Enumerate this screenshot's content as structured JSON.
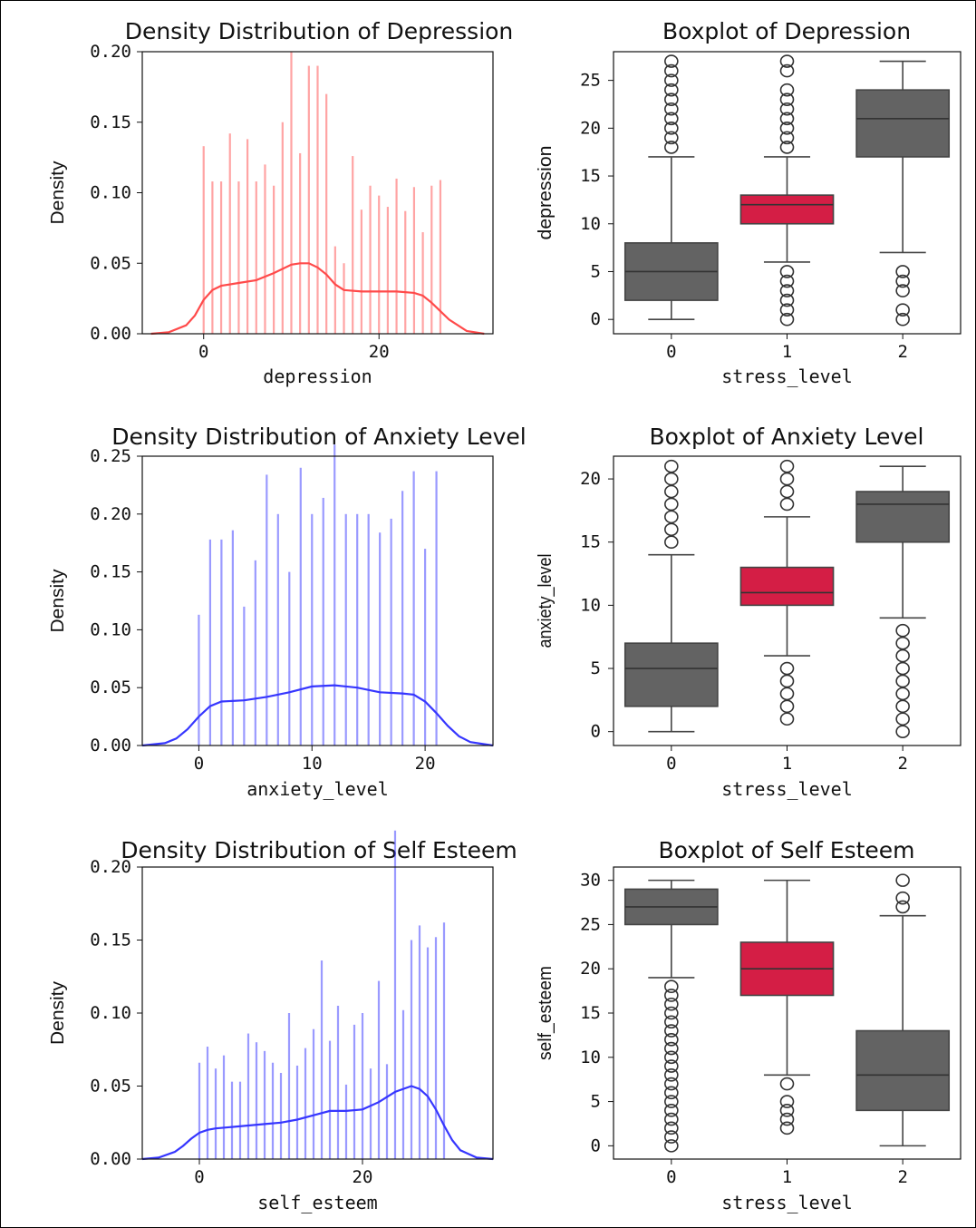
{
  "chart_data": [
    {
      "type": "bar",
      "kind": "density-histogram-with-kde",
      "title": "Density Distribution of Depression",
      "xlabel": "depression",
      "ylabel": "Density",
      "color": "#ff4a4a",
      "xlim": [
        -7,
        33
      ],
      "ylim": [
        0,
        0.2
      ],
      "xticks": [
        0,
        20
      ],
      "yticks": [
        "0.00",
        "0.05",
        "0.10",
        "0.15",
        "0.20"
      ],
      "bars": {
        "x": [
          0,
          1,
          2,
          3,
          4,
          5,
          6,
          7,
          8,
          9,
          10,
          11,
          12,
          13,
          14,
          15,
          16,
          17,
          18,
          19,
          20,
          21,
          22,
          23,
          24,
          25,
          26,
          27
        ],
        "values": [
          0.133,
          0.108,
          0.108,
          0.142,
          0.108,
          0.138,
          0.108,
          0.12,
          0.105,
          0.15,
          0.2,
          0.128,
          0.19,
          0.19,
          0.17,
          0.062,
          0.05,
          0.126,
          0.088,
          0.105,
          0.098,
          0.09,
          0.11,
          0.087,
          0.104,
          0.072,
          0.105,
          0.109
        ]
      },
      "kde": {
        "x": [
          -6,
          -4,
          -2,
          -1,
          0,
          1,
          2,
          4,
          6,
          8,
          10,
          11,
          12,
          13,
          14,
          15,
          16,
          18,
          20,
          22,
          24,
          25,
          26,
          27,
          28,
          30,
          32
        ],
        "y": [
          0,
          0.001,
          0.006,
          0.013,
          0.024,
          0.031,
          0.034,
          0.036,
          0.038,
          0.043,
          0.049,
          0.05,
          0.05,
          0.047,
          0.042,
          0.035,
          0.031,
          0.03,
          0.03,
          0.03,
          0.029,
          0.027,
          0.022,
          0.016,
          0.01,
          0.002,
          0
        ]
      }
    },
    {
      "type": "box",
      "title": "Boxplot of Depression",
      "xlabel": "stress_level",
      "ylabel": "depression",
      "categories": [
        "0",
        "1",
        "2"
      ],
      "ylim": [
        -1.5,
        28
      ],
      "yticks": [
        0,
        5,
        10,
        15,
        20,
        25
      ],
      "colors": [
        "#636363",
        "#d41e45",
        "#636363"
      ],
      "boxes": [
        {
          "q1": 2,
          "median": 5,
          "q3": 8,
          "whislo": 0,
          "whishi": 17,
          "fliers": [
            18,
            19,
            20,
            21,
            22,
            23,
            24,
            25,
            26,
            27
          ]
        },
        {
          "q1": 10,
          "median": 12,
          "q3": 13,
          "whislo": 6,
          "whishi": 17,
          "fliers": [
            0,
            1,
            2,
            3,
            4,
            5,
            18,
            19,
            20,
            21,
            22,
            23,
            24,
            26,
            27
          ]
        },
        {
          "q1": 17,
          "median": 21,
          "q3": 24,
          "whislo": 7,
          "whishi": 27,
          "fliers": [
            0,
            1,
            3,
            4,
            5
          ]
        }
      ]
    },
    {
      "type": "bar",
      "kind": "density-histogram-with-kde",
      "title": "Density Distribution of Anxiety Level",
      "xlabel": "anxiety_level",
      "ylabel": "Density",
      "color": "#3636ff",
      "xlim": [
        -5,
        26
      ],
      "ylim": [
        0,
        0.25
      ],
      "xticks": [
        0,
        10,
        20
      ],
      "yticks": [
        "0.00",
        "0.05",
        "0.10",
        "0.15",
        "0.20",
        "0.25"
      ],
      "bars": {
        "x": [
          0,
          1,
          2,
          3,
          4,
          5,
          6,
          7,
          8,
          9,
          10,
          11,
          12,
          13,
          14,
          15,
          16,
          17,
          18,
          19,
          20,
          21
        ],
        "values": [
          0.113,
          0.178,
          0.178,
          0.186,
          0.12,
          0.16,
          0.234,
          0.2,
          0.15,
          0.24,
          0.2,
          0.214,
          0.26,
          0.2,
          0.2,
          0.2,
          0.184,
          0.196,
          0.22,
          0.237,
          0.17,
          0.237
        ]
      },
      "kde": {
        "x": [
          -5,
          -3,
          -2,
          -1,
          0,
          1,
          2,
          4,
          6,
          8,
          10,
          12,
          14,
          16,
          18,
          19,
          20,
          21,
          22,
          23,
          24,
          26
        ],
        "y": [
          0,
          0.002,
          0.006,
          0.014,
          0.025,
          0.034,
          0.038,
          0.039,
          0.042,
          0.046,
          0.051,
          0.052,
          0.05,
          0.046,
          0.045,
          0.044,
          0.038,
          0.028,
          0.017,
          0.008,
          0.003,
          0
        ]
      }
    },
    {
      "type": "box",
      "title": "Boxplot of Anxiety Level",
      "xlabel": "stress_level",
      "ylabel": "anxiety_level",
      "categories": [
        "0",
        "1",
        "2"
      ],
      "ylim": [
        -1.1,
        21.8
      ],
      "yticks": [
        0,
        5,
        10,
        15,
        20
      ],
      "colors": [
        "#636363",
        "#d41e45",
        "#636363"
      ],
      "boxes": [
        {
          "q1": 2,
          "median": 5,
          "q3": 7,
          "whislo": 0,
          "whishi": 14,
          "fliers": [
            15,
            16,
            17,
            18,
            19,
            20,
            21
          ]
        },
        {
          "q1": 10,
          "median": 11,
          "q3": 13,
          "whislo": 6,
          "whishi": 17,
          "fliers": [
            1,
            2,
            3,
            4,
            5,
            18,
            19,
            20,
            21
          ]
        },
        {
          "q1": 15,
          "median": 18,
          "q3": 19,
          "whislo": 9,
          "whishi": 21,
          "fliers": [
            0,
            1,
            2,
            3,
            4,
            5,
            6,
            7,
            8
          ]
        }
      ]
    },
    {
      "type": "bar",
      "kind": "density-histogram-with-kde",
      "title": "Density Distribution of Self Esteem",
      "xlabel": "self_esteem",
      "ylabel": "Density",
      "color": "#3636ff",
      "xlim": [
        -7,
        36
      ],
      "ylim": [
        0,
        0.2
      ],
      "xticks": [
        0,
        20
      ],
      "yticks": [
        "0.00",
        "0.05",
        "0.10",
        "0.15",
        "0.20"
      ],
      "bars": {
        "x": [
          0,
          1,
          2,
          3,
          4,
          5,
          6,
          7,
          8,
          9,
          10,
          11,
          12,
          13,
          14,
          15,
          16,
          17,
          18,
          19,
          20,
          21,
          22,
          23,
          24,
          25,
          26,
          27,
          28,
          29,
          30
        ],
        "values": [
          0.066,
          0.077,
          0.062,
          0.071,
          0.053,
          0.053,
          0.086,
          0.08,
          0.074,
          0.066,
          0.059,
          0.1,
          0.064,
          0.076,
          0.089,
          0.136,
          0.081,
          0.105,
          0.051,
          0.092,
          0.1,
          0.062,
          0.122,
          0.065,
          0.225,
          0.102,
          0.15,
          0.16,
          0.145,
          0.152,
          0.162
        ]
      },
      "kde": {
        "x": [
          -7,
          -5,
          -3,
          -2,
          -1,
          0,
          1,
          2,
          4,
          6,
          8,
          10,
          12,
          14,
          16,
          18,
          20,
          22,
          24,
          26,
          27,
          28,
          29,
          30,
          31,
          32,
          34,
          36
        ],
        "y": [
          0,
          0.001,
          0.005,
          0.009,
          0.014,
          0.018,
          0.02,
          0.021,
          0.022,
          0.023,
          0.024,
          0.025,
          0.027,
          0.03,
          0.033,
          0.033,
          0.034,
          0.039,
          0.046,
          0.05,
          0.048,
          0.043,
          0.034,
          0.023,
          0.013,
          0.006,
          0.001,
          0
        ]
      }
    },
    {
      "type": "box",
      "title": "Boxplot of Self Esteem",
      "xlabel": "stress_level",
      "ylabel": "self_esteem",
      "categories": [
        "0",
        "1",
        "2"
      ],
      "ylim": [
        -1.5,
        31.5
      ],
      "yticks": [
        0,
        5,
        10,
        15,
        20,
        25,
        30
      ],
      "colors": [
        "#636363",
        "#d41e45",
        "#636363"
      ],
      "boxes": [
        {
          "q1": 25,
          "median": 27,
          "q3": 29,
          "whislo": 19,
          "whishi": 30,
          "fliers": [
            0,
            1,
            2,
            3,
            4,
            5,
            6,
            7,
            8,
            9,
            10,
            11,
            12,
            13,
            14,
            15,
            16,
            17,
            18
          ]
        },
        {
          "q1": 17,
          "median": 20,
          "q3": 23,
          "whislo": 8,
          "whishi": 30,
          "fliers": [
            2,
            3,
            4,
            5,
            7
          ]
        },
        {
          "q1": 4,
          "median": 8,
          "q3": 13,
          "whislo": 0,
          "whishi": 26,
          "fliers": [
            27,
            28,
            30
          ]
        }
      ]
    }
  ]
}
